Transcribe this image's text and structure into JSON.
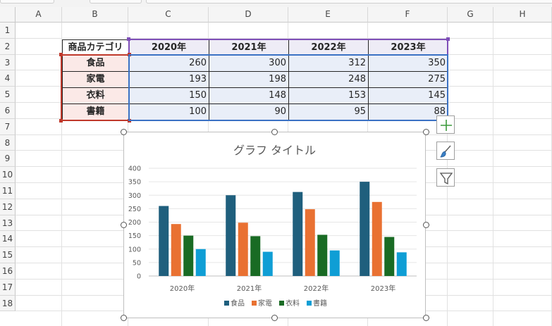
{
  "columns": [
    "A",
    "B",
    "C",
    "D",
    "E",
    "F",
    "G",
    "H"
  ],
  "rows": [
    "1",
    "2",
    "3",
    "4",
    "5",
    "6",
    "7",
    "8",
    "9",
    "10",
    "11",
    "12",
    "13",
    "14",
    "15",
    "16",
    "17",
    "18"
  ],
  "table": {
    "header_label": "商品カテゴリ",
    "years": [
      "2020年",
      "2021年",
      "2022年",
      "2023年"
    ],
    "rows": [
      {
        "category": "食品",
        "values": [
          "260",
          "300",
          "312",
          "350"
        ]
      },
      {
        "category": "家電",
        "values": [
          "193",
          "198",
          "248",
          "275"
        ]
      },
      {
        "category": "衣料",
        "values": [
          "150",
          "148",
          "153",
          "145"
        ]
      },
      {
        "category": "書籍",
        "values": [
          "100",
          "90",
          "95",
          "88"
        ]
      }
    ]
  },
  "chart_data": {
    "type": "bar",
    "title": "グラフ タイトル",
    "categories": [
      "2020年",
      "2021年",
      "2022年",
      "2023年"
    ],
    "series": [
      {
        "name": "食品",
        "values": [
          260,
          300,
          312,
          350
        ],
        "color": "#1f5f7d"
      },
      {
        "name": "家電",
        "values": [
          193,
          198,
          248,
          275
        ],
        "color": "#e97132"
      },
      {
        "name": "衣料",
        "values": [
          150,
          148,
          153,
          145
        ],
        "color": "#196b24"
      },
      {
        "name": "書籍",
        "values": [
          100,
          90,
          95,
          88
        ],
        "color": "#0f9ed5"
      }
    ],
    "ylim": [
      0,
      400
    ],
    "yticks": [
      "0",
      "50",
      "100",
      "150",
      "200",
      "250",
      "300",
      "350",
      "400"
    ],
    "grid": true,
    "legend": "bottom"
  },
  "chart_tools": {
    "elements_icon": "plus-icon",
    "styles_icon": "brush-icon",
    "filters_icon": "filter-icon"
  },
  "colors": {
    "selection_purple": "#7f4fb8",
    "selection_red": "#c0392b",
    "selection_blue": "#3b72c4"
  }
}
